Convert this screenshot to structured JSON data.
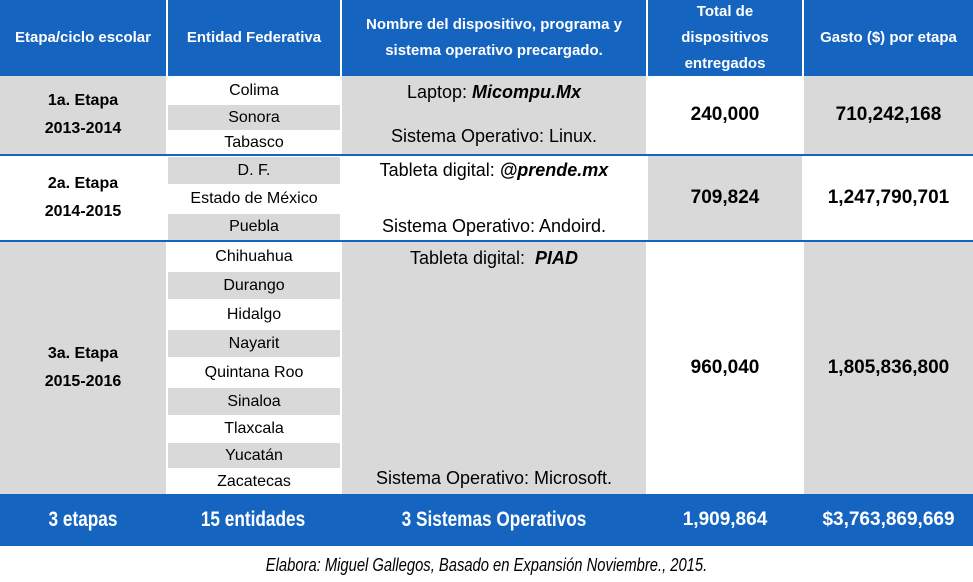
{
  "headers": {
    "stage": "Etapa/ciclo escolar",
    "entity": "Entidad Federativa",
    "device": "Nombre del dispositivo, programa y sistema operativo precargado.",
    "total": "Total de dispositivos entregados",
    "spend": "Gasto ($) por etapa"
  },
  "rows": [
    {
      "stage_name": "1a. Etapa",
      "years": "2013-2014",
      "states": [
        "Colima",
        "Sonora",
        "Tabasco"
      ],
      "device_prefix": "Laptop: ",
      "device_name": "Micompu.Mx",
      "os": "Sistema Operativo: Linux.",
      "total": "240,000",
      "spend": "710,242,168"
    },
    {
      "stage_name": "2a. Etapa",
      "years": "2014-2015",
      "states": [
        "D. F.",
        "Estado de México",
        "Puebla"
      ],
      "device_prefix": "Tableta digital: ",
      "device_name": "@prende.mx",
      "os": "Sistema Operativo: Andoird.",
      "total": "709,824",
      "spend": "1,247,790,701"
    },
    {
      "stage_name": "3a. Etapa",
      "years": "2015-2016",
      "states": [
        "Chihuahua",
        "Durango",
        "Hidalgo",
        "Nayarit",
        "Quintana Roo",
        "Sinaloa",
        "Tlaxcala",
        "Yucatán",
        "Zacatecas"
      ],
      "device_prefix": "Tableta digital:  ",
      "device_name": "PIAD",
      "os": "Sistema Operativo: Microsoft.",
      "total": "960,040",
      "spend": "1,805,836,800"
    }
  ],
  "footer": {
    "stages": "3 etapas",
    "entities": "15 entidades",
    "systems": "3 Sistemas Operativos",
    "total": "1,909,864",
    "spend": "$3,763,869,669"
  },
  "credit": "Elabora: Miguel Gallegos, Basado en Expansión Noviembre., 2015."
}
